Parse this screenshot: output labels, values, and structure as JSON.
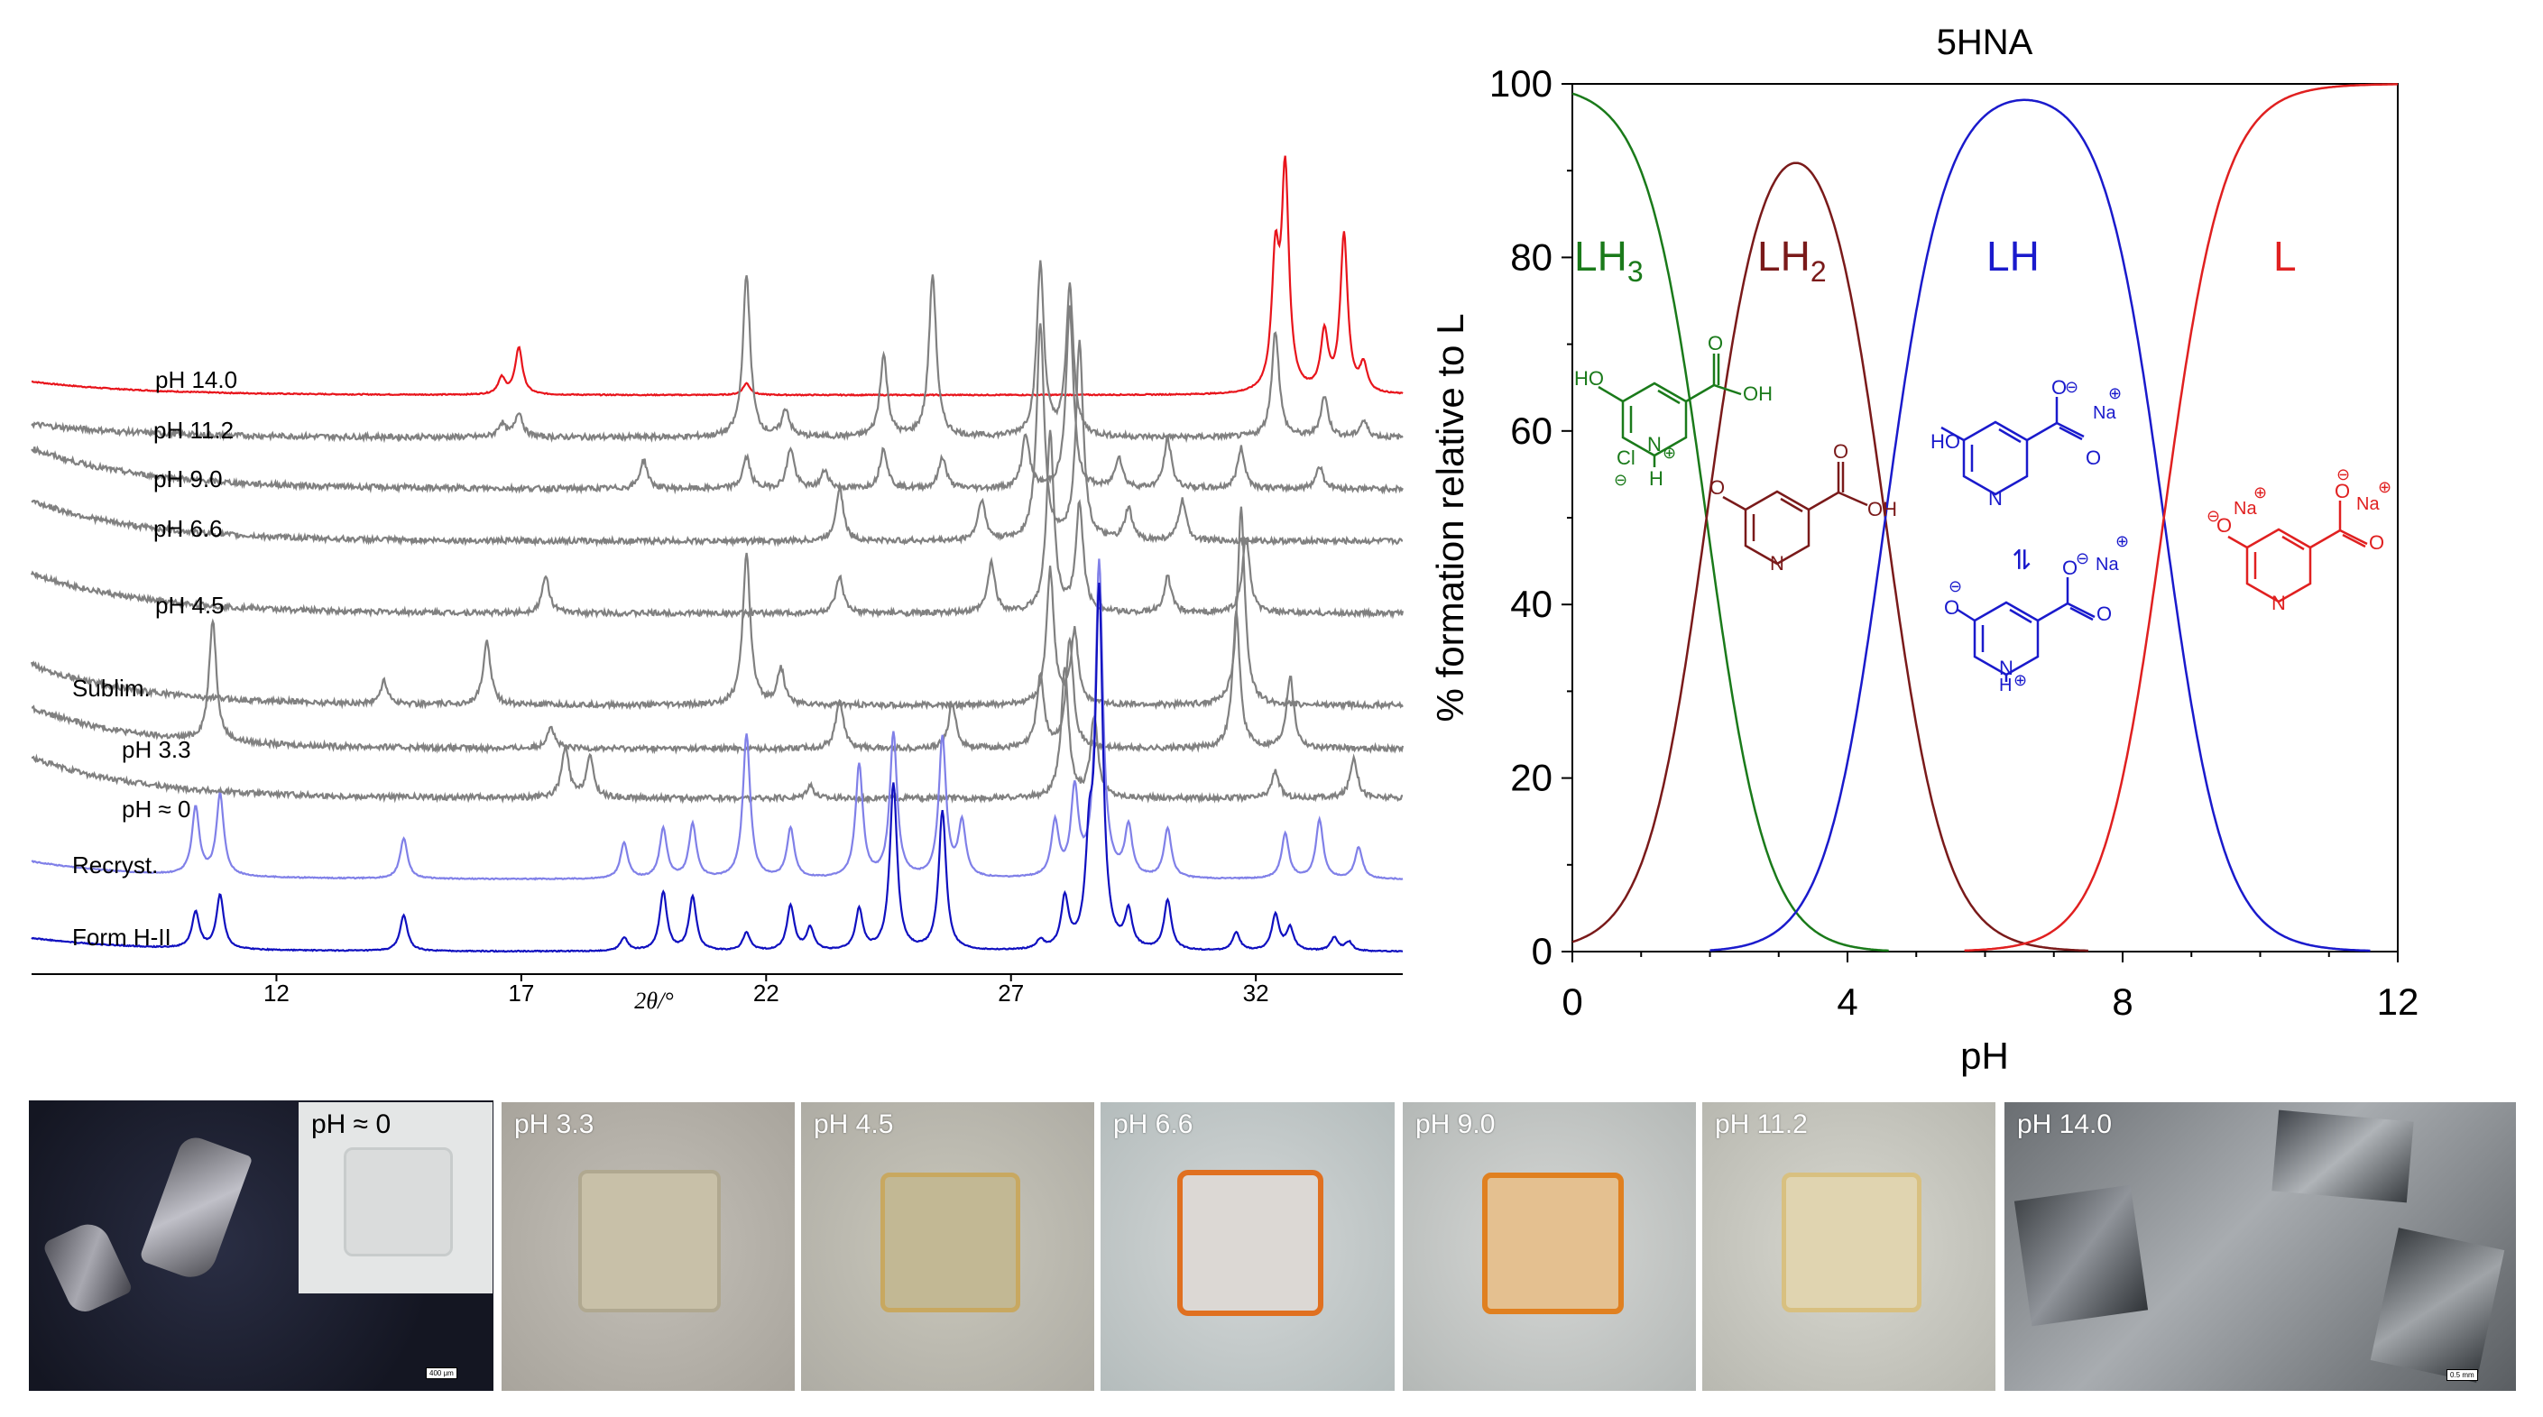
{
  "chart_data": [
    {
      "type": "line",
      "title": "",
      "xlabel": "2θ/°",
      "ylabel": "",
      "xlim": [
        7,
        35
      ],
      "x_ticks": [
        "12",
        "17",
        "22",
        "27",
        "32"
      ],
      "series": [
        {
          "name": "pH 14.0",
          "color": "#e8141b",
          "peaks": [
            [
              16.6,
              18
            ],
            [
              16.95,
              52
            ],
            [
              21.6,
              13
            ],
            [
              32.4,
              140
            ],
            [
              32.6,
              240
            ],
            [
              33.4,
              65
            ],
            [
              33.8,
              175
            ],
            [
              34.2,
              30
            ]
          ]
        },
        {
          "name": "pH 11.2",
          "color": "#808080",
          "peaks": [
            [
              16.6,
              15
            ],
            [
              16.95,
              28
            ],
            [
              21.6,
              180
            ],
            [
              22.4,
              30
            ],
            [
              24.4,
              90
            ],
            [
              25.4,
              180
            ],
            [
              27.6,
              190
            ],
            [
              28.2,
              165
            ],
            [
              32.4,
              118
            ],
            [
              33.4,
              45
            ],
            [
              34.2,
              18
            ]
          ]
        },
        {
          "name": "pH 9.0",
          "color": "#808080",
          "peaks": [
            [
              19.5,
              32
            ],
            [
              21.6,
              35
            ],
            [
              22.5,
              45
            ],
            [
              23.2,
              20
            ],
            [
              24.4,
              45
            ],
            [
              25.6,
              35
            ],
            [
              27.3,
              60
            ],
            [
              28.2,
              200
            ],
            [
              29.2,
              35
            ],
            [
              30.2,
              55
            ],
            [
              31.7,
              45
            ],
            [
              33.3,
              25
            ]
          ]
        },
        {
          "name": "pH 6.6",
          "color": "#808080",
          "peaks": [
            [
              23.5,
              60
            ],
            [
              26.4,
              45
            ],
            [
              27.6,
              240
            ],
            [
              28.4,
              220
            ],
            [
              29.4,
              35
            ],
            [
              30.5,
              45
            ]
          ]
        },
        {
          "name": "pH 4.5",
          "color": "#808080",
          "peaks": [
            [
              17.5,
              40
            ],
            [
              23.5,
              40
            ],
            [
              26.6,
              55
            ],
            [
              27.8,
              200
            ],
            [
              28.4,
              120
            ],
            [
              30.2,
              40
            ],
            [
              31.8,
              85
            ]
          ]
        },
        {
          "name": "Sublim.",
          "color": "#808080",
          "peaks": [
            [
              14.2,
              25
            ],
            [
              16.3,
              70
            ],
            [
              21.6,
              170
            ],
            [
              22.3,
              40
            ],
            [
              27.8,
              150
            ],
            [
              28.3,
              80
            ],
            [
              31.7,
              220
            ]
          ]
        },
        {
          "name": "pH 3.3",
          "color": "#808080",
          "peaks": [
            [
              10.7,
              135
            ],
            [
              17.6,
              25
            ],
            [
              23.5,
              55
            ],
            [
              25.8,
              50
            ],
            [
              27.6,
              80
            ],
            [
              28.2,
              120
            ],
            [
              31.6,
              150
            ],
            [
              32.7,
              80
            ]
          ]
        },
        {
          "name": "pH ≈ 0",
          "color": "#808080",
          "peaks": [
            [
              17.9,
              55
            ],
            [
              18.4,
              45
            ],
            [
              22.9,
              15
            ],
            [
              28.1,
              145
            ],
            [
              28.7,
              90
            ],
            [
              32.4,
              30
            ],
            [
              34.0,
              45
            ]
          ]
        },
        {
          "name": "Recryst.",
          "color": "#8080e8",
          "peaks": [
            [
              10.35,
              75
            ],
            [
              10.85,
              90
            ],
            [
              14.6,
              45
            ],
            [
              19.1,
              40
            ],
            [
              19.9,
              55
            ],
            [
              20.5,
              60
            ],
            [
              21.6,
              160
            ],
            [
              22.5,
              55
            ],
            [
              23.9,
              125
            ],
            [
              24.6,
              160
            ],
            [
              25.6,
              155
            ],
            [
              26.0,
              60
            ],
            [
              27.9,
              60
            ],
            [
              28.3,
              95
            ],
            [
              28.8,
              350
            ],
            [
              29.4,
              55
            ],
            [
              30.2,
              55
            ],
            [
              32.6,
              50
            ],
            [
              33.3,
              65
            ],
            [
              34.1,
              35
            ]
          ]
        },
        {
          "name": "Form H-II",
          "color": "#1010c0",
          "peaks": [
            [
              10.35,
              40
            ],
            [
              10.85,
              60
            ],
            [
              14.6,
              40
            ],
            [
              19.1,
              15
            ],
            [
              19.9,
              65
            ],
            [
              20.5,
              60
            ],
            [
              21.6,
              20
            ],
            [
              22.5,
              50
            ],
            [
              22.9,
              25
            ],
            [
              23.9,
              45
            ],
            [
              24.6,
              185
            ],
            [
              25.6,
              155
            ],
            [
              27.6,
              10
            ],
            [
              28.1,
              55
            ],
            [
              28.6,
              100
            ],
            [
              28.8,
              390
            ],
            [
              29.4,
              40
            ],
            [
              30.2,
              55
            ],
            [
              31.6,
              20
            ],
            [
              32.4,
              40
            ],
            [
              32.7,
              25
            ],
            [
              33.6,
              15
            ],
            [
              33.9,
              10
            ]
          ]
        }
      ]
    },
    {
      "type": "line",
      "title": "5HNA",
      "xlabel": "pH",
      "ylabel": "% formation relative to L",
      "xlim": [
        0,
        12
      ],
      "ylim": [
        0,
        100
      ],
      "x_ticks": [
        "0",
        "4",
        "8",
        "12"
      ],
      "y_ticks": [
        "0",
        "20",
        "40",
        "60",
        "80",
        "100"
      ],
      "pKa": [
        1.95,
        4.55,
        8.6
      ],
      "series": [
        {
          "name": "LH3",
          "color": "#1a7a1a",
          "x_range": [
            0,
            4.6
          ]
        },
        {
          "name": "LH2",
          "color": "#7a1a1a",
          "x_range": [
            0,
            7.5
          ]
        },
        {
          "name": "LH",
          "color": "#1a1acc",
          "x_range": [
            2.0,
            11.6
          ]
        },
        {
          "name": "L",
          "color": "#e02020",
          "x_range": [
            5.7,
            12
          ]
        }
      ],
      "species_labels": {
        "LH3": {
          "base": "LH",
          "sub": "3"
        },
        "LH2": {
          "base": "LH",
          "sub": "2"
        },
        "LH": "LH",
        "L": "L"
      },
      "structure_text": {
        "lh3": {
          "ho": "HO",
          "oh": "OH",
          "o": "O",
          "n": "N",
          "h": "H",
          "cl": "Cl",
          "minus": "⊖",
          "plus": "⊕"
        },
        "lh2": {
          "o": "O",
          "oh": "OH",
          "n": "N"
        },
        "lh_a": {
          "ho": "HO",
          "o": "O",
          "na": "Na",
          "n": "N",
          "minus": "⊖",
          "plus": "⊕"
        },
        "lh_b": {
          "o": "O",
          "na": "Na",
          "n": "N",
          "h": "H",
          "minus": "⊖",
          "plus": "⊕"
        },
        "l": {
          "o": "O",
          "na": "Na",
          "n": "N",
          "minus": "⊖",
          "plus": "⊕"
        },
        "equilibrium": "⇌"
      }
    }
  ],
  "photos": [
    {
      "label": "",
      "scale": "400 μm"
    },
    {
      "label": "pH ≈ 0"
    },
    {
      "label": "pH 3.3"
    },
    {
      "label": "pH 4.5"
    },
    {
      "label": "pH 6.6"
    },
    {
      "label": "pH 9.0"
    },
    {
      "label": "pH 11.2"
    },
    {
      "label": "pH 14.0",
      "scale": "0.5 mm"
    }
  ]
}
